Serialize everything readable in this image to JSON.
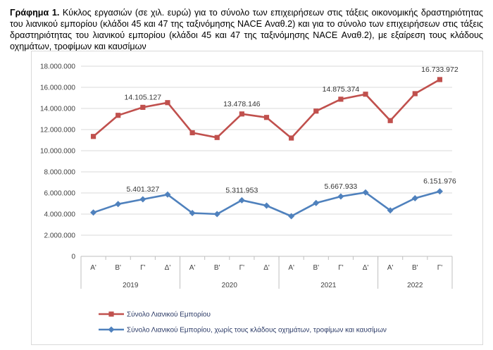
{
  "caption": {
    "label": "Γράφημα 1.",
    "text": "Κύκλος εργασιών (σε χιλ. ευρώ) για το σύνολο των επιχειρήσεων στις τάξεις οικονομικής δραστηριότητας του λιανικού εμπορίου (κλάδοι 45 και 47 της ταξινόμησης NACE Αναθ.2) και για το σύνολο των επιχειρήσεων στις τάξεις δραστηριότητας του λιανικού εμπορίου (κλάδοι 45 και 47 της ταξινόμησης NACE Αναθ.2), με εξαίρεση τους κλάδους οχημάτων, τροφίμων και καυσίμων"
  },
  "chart_data": {
    "type": "line",
    "ylim": [
      0,
      18000000
    ],
    "y_ticks": [
      0,
      2000000,
      4000000,
      6000000,
      8000000,
      10000000,
      12000000,
      14000000,
      16000000,
      18000000
    ],
    "y_tick_labels": [
      "0",
      "2.000.000",
      "4.000.000",
      "6.000.000",
      "8.000.000",
      "10.000.000",
      "12.000.000",
      "14.000.000",
      "16.000.000",
      "18.000.000"
    ],
    "categories": [
      "Α'",
      "Β'",
      "Γ'",
      "Δ'",
      "Α'",
      "Β'",
      "Γ'",
      "Δ'",
      "Α'",
      "Β'",
      "Γ'",
      "Δ'",
      "Α'",
      "Β'",
      "Γ'"
    ],
    "years": [
      {
        "label": "2019",
        "start": 0,
        "count": 4
      },
      {
        "label": "2020",
        "start": 4,
        "count": 4
      },
      {
        "label": "2021",
        "start": 8,
        "count": 4
      },
      {
        "label": "2022",
        "start": 12,
        "count": 3
      }
    ],
    "grid": true,
    "legend": "bottom",
    "series": [
      {
        "name": "Σύνολο Λιανικού Εμπορίου",
        "color": "#c0504d",
        "marker": "square",
        "values": [
          11350000,
          13350000,
          14105127,
          14550000,
          11700000,
          11250000,
          13478146,
          13150000,
          11200000,
          13750000,
          14875374,
          15350000,
          12850000,
          15400000,
          16733972
        ],
        "labels": [
          {
            "index": 2,
            "text": "14.105.127"
          },
          {
            "index": 6,
            "text": "13.478.146"
          },
          {
            "index": 10,
            "text": "14.875.374"
          },
          {
            "index": 14,
            "text": "16.733.972"
          }
        ]
      },
      {
        "name": "Σύνολο Λιανικού Εμπορίου, χωρίς τους κλάδους οχημάτων, τροφίμων και καυσίμων",
        "color": "#4f81bd",
        "marker": "diamond",
        "values": [
          4150000,
          4950000,
          5401327,
          5850000,
          4100000,
          4000000,
          5311953,
          4800000,
          3800000,
          5050000,
          5667933,
          6050000,
          4350000,
          5500000,
          6151976
        ],
        "labels": [
          {
            "index": 2,
            "text": "5.401.327"
          },
          {
            "index": 6,
            "text": "5.311.953"
          },
          {
            "index": 10,
            "text": "5.667.933"
          },
          {
            "index": 14,
            "text": "6.151.976"
          }
        ]
      }
    ]
  }
}
